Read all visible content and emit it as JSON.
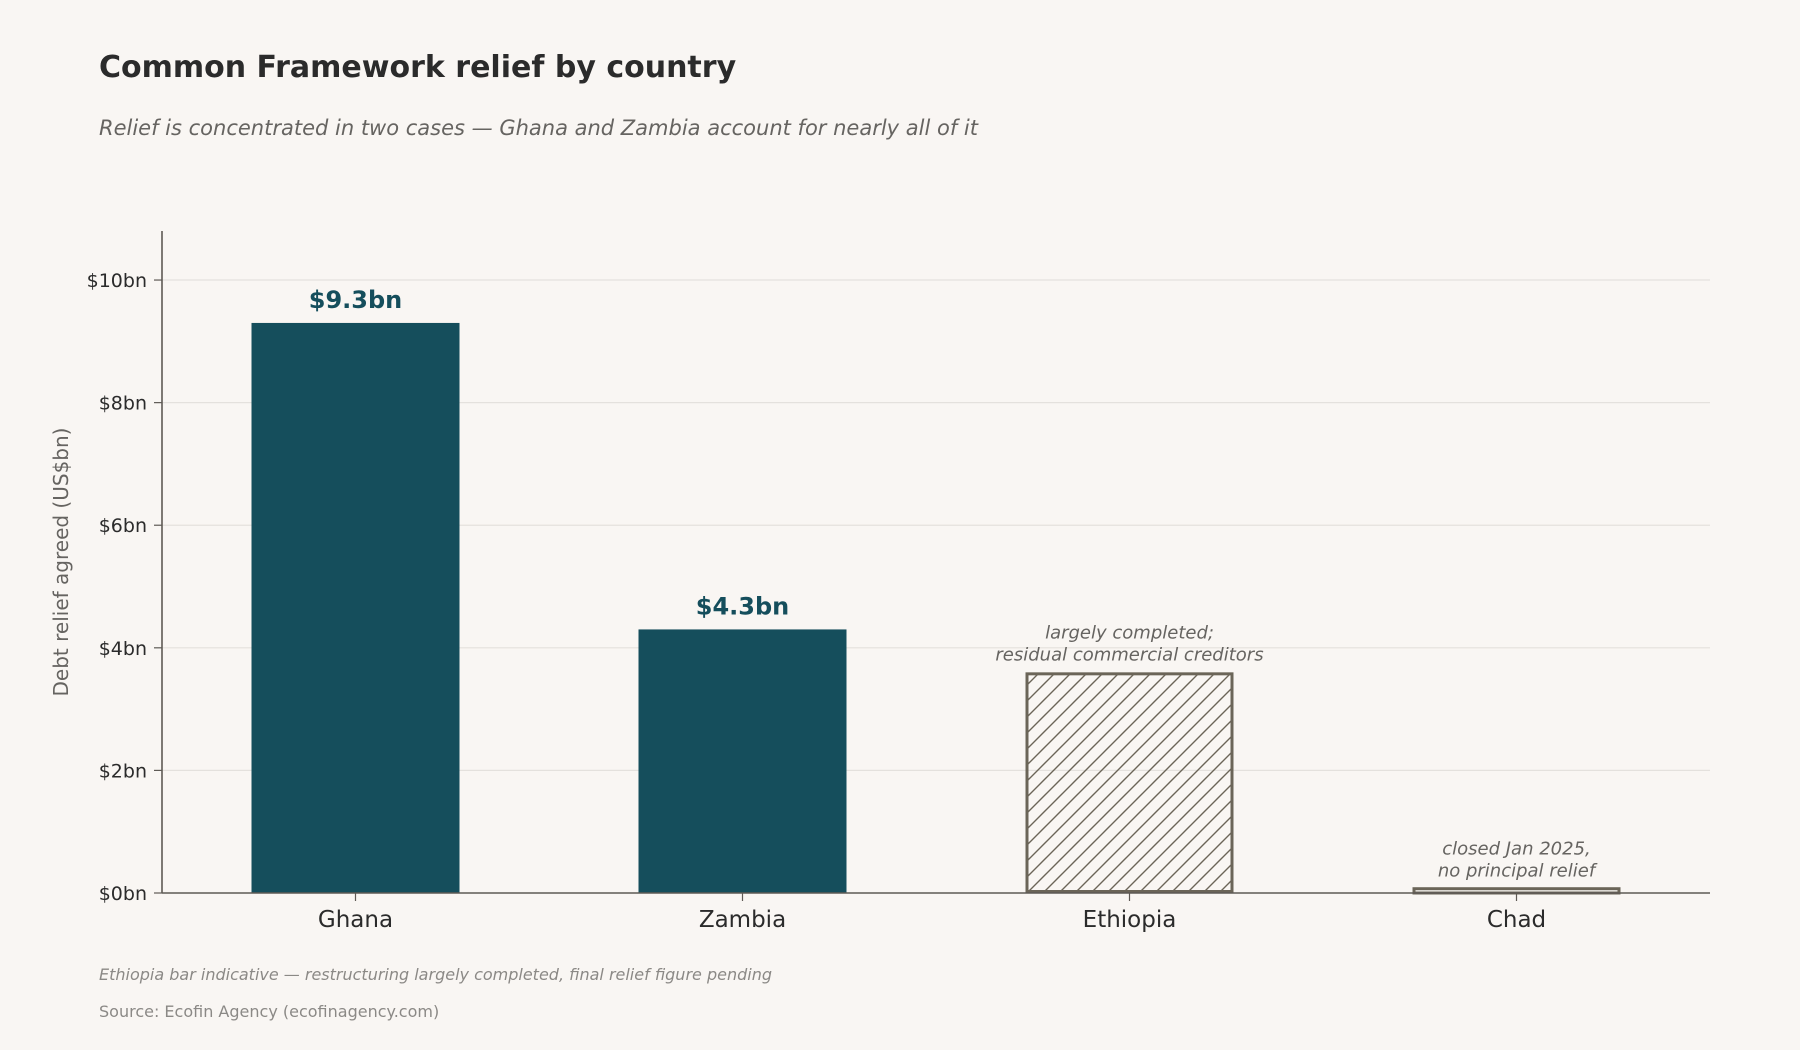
{
  "title": "Common Framework relief by country",
  "subtitle": "Relief is concentrated in two cases — Ghana and Zambia account for nearly all of it",
  "footnote": "Ethiopia bar indicative — restructuring largely completed, final relief figure pending",
  "source": "Source: Ecofin Agency (ecofinagency.com)",
  "colors": {
    "solid_bar": "#154e5c",
    "hatched_outline": "#6b6558",
    "gridline": "#e4e1dd",
    "axis": "#5e5a55",
    "background": "#f9f6f3"
  },
  "chart_data": {
    "type": "bar",
    "title": "Common Framework relief by country",
    "subtitle": "Relief is concentrated in two cases — Ghana and Zambia account for nearly all of it",
    "xlabel": "",
    "ylabel": "Debt relief agreed (US$bn)",
    "ylim": [
      0,
      10.8
    ],
    "yticks": [
      0,
      2,
      4,
      6,
      8,
      10
    ],
    "ytick_labels": [
      "$0bn",
      "$2bn",
      "$4bn",
      "$6bn",
      "$8bn",
      "$10bn"
    ],
    "grid": "horizontal",
    "categories": [
      "Ghana",
      "Zambia",
      "Ethiopia",
      "Chad"
    ],
    "values": [
      9.3,
      4.3,
      3.6,
      0.07
    ],
    "styles": [
      "solid",
      "solid",
      "hatched",
      "outline"
    ],
    "value_labels": [
      "$9.3bn",
      "$4.3bn",
      "",
      ""
    ],
    "annotations": [
      "",
      "",
      "largely completed;\nresidual commercial creditors",
      "closed Jan 2025,\nno principal relief"
    ]
  }
}
